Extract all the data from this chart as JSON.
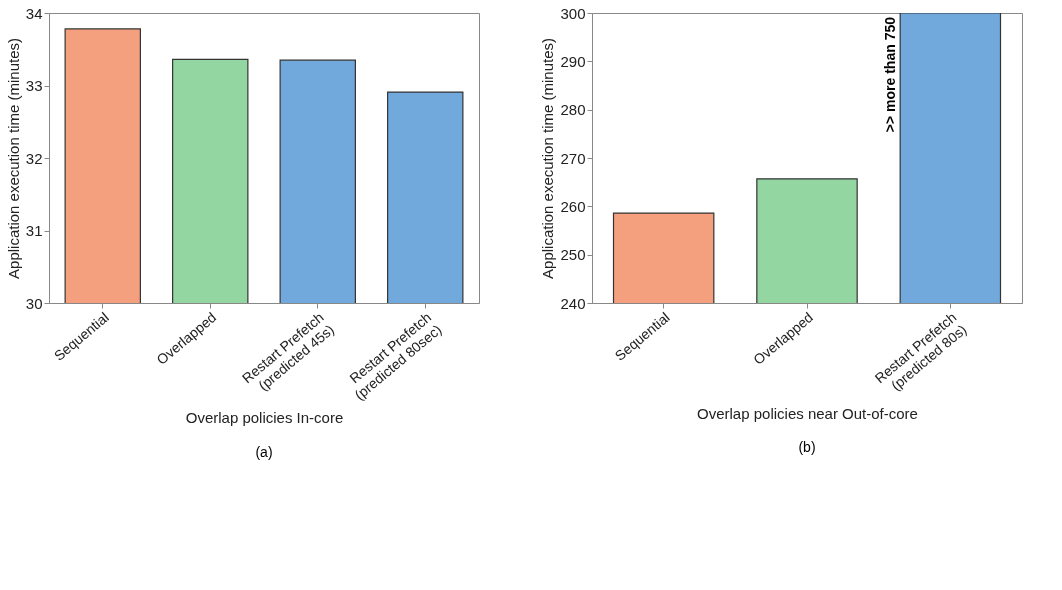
{
  "chart_data": [
    {
      "type": "bar",
      "xlabel": "Overlap policies In-core",
      "ylabel": "Application execution time (minutes)",
      "categories": [
        "Sequential",
        "Overlapped",
        "Restart Prefetch\n(predicted 45s)",
        "Restart Prefetch\n(predicted 80sec)"
      ],
      "values": [
        33.78,
        33.36,
        33.35,
        32.91
      ],
      "colors": [
        "#f4a07f",
        "#93d6a2",
        "#72a9dd",
        "#72a9dd"
      ],
      "ylim": [
        30,
        34
      ],
      "yticks": [
        30,
        31,
        32,
        33,
        34
      ],
      "grid": false,
      "annotations": [
        "(a)"
      ]
    },
    {
      "type": "bar",
      "xlabel": "Overlap policies near Out-of-core",
      "ylabel": "Application execution time (minutes)",
      "categories": [
        "Sequential",
        "Overlapped",
        "Restart Prefetch\n(predicted 80s)"
      ],
      "values": [
        258.6,
        265.7,
        300
      ],
      "colors": [
        "#f4a07f",
        "#93d6a2",
        "#72a9dd"
      ],
      "ylim": [
        240,
        300
      ],
      "yticks": [
        240,
        250,
        260,
        270,
        280,
        290,
        300
      ],
      "grid": false,
      "annotations": [
        {
          "text": ">> more than 750",
          "x": "Restart Prefetch\n(predicted 80s)",
          "y": 300
        },
        "(b)"
      ]
    }
  ]
}
